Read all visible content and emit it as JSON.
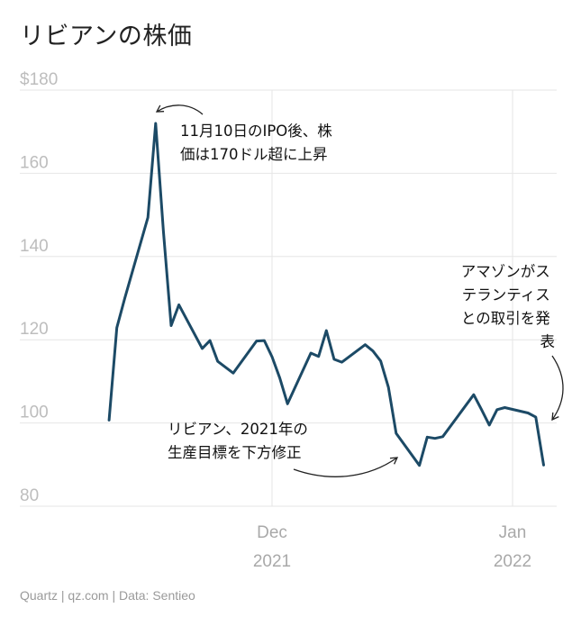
{
  "title": "リビアンの株価",
  "source": "Quartz | qz.com | Data: Sentieo",
  "colors": {
    "line": "#1c4a66",
    "grid": "#e6e6e6",
    "tick": "#bdbdbd",
    "arrow": "#222222"
  },
  "chart_data": {
    "type": "line",
    "title": "リビアンの株価",
    "xlabel": "",
    "ylabel": "",
    "ylim": [
      80,
      180
    ],
    "y_ticks": [
      80,
      100,
      120,
      140,
      160,
      180
    ],
    "y_tick_labels": [
      "80",
      "100",
      "120",
      "140",
      "160",
      "$180"
    ],
    "x_ticks": [
      {
        "date": "2021-12-01",
        "label": "Dec",
        "sublabel": "2021"
      },
      {
        "date": "2022-01-01",
        "label": "Jan",
        "sublabel": "2022"
      }
    ],
    "grid": true,
    "series": [
      {
        "values": [
          {
            "date": "2021-11-10",
            "y": 100.7
          },
          {
            "date": "2021-11-11",
            "y": 122.9
          },
          {
            "date": "2021-11-12",
            "y": 129.9
          },
          {
            "date": "2021-11-15",
            "y": 149.4
          },
          {
            "date": "2021-11-16",
            "y": 172.0
          },
          {
            "date": "2021-11-17",
            "y": 146.1
          },
          {
            "date": "2021-11-18",
            "y": 123.4
          },
          {
            "date": "2021-11-19",
            "y": 128.4
          },
          {
            "date": "2021-11-22",
            "y": 117.9
          },
          {
            "date": "2021-11-23",
            "y": 119.8
          },
          {
            "date": "2021-11-24",
            "y": 114.8
          },
          {
            "date": "2021-11-26",
            "y": 112.0
          },
          {
            "date": "2021-11-29",
            "y": 119.7
          },
          {
            "date": "2021-11-30",
            "y": 119.8
          },
          {
            "date": "2021-12-01",
            "y": 115.9
          },
          {
            "date": "2021-12-02",
            "y": 110.8
          },
          {
            "date": "2021-12-03",
            "y": 104.6
          },
          {
            "date": "2021-12-06",
            "y": 116.8
          },
          {
            "date": "2021-12-07",
            "y": 116.0
          },
          {
            "date": "2021-12-08",
            "y": 122.2
          },
          {
            "date": "2021-12-09",
            "y": 115.3
          },
          {
            "date": "2021-12-10",
            "y": 114.6
          },
          {
            "date": "2021-12-13",
            "y": 118.8
          },
          {
            "date": "2021-12-14",
            "y": 117.3
          },
          {
            "date": "2021-12-15",
            "y": 114.9
          },
          {
            "date": "2021-12-16",
            "y": 108.6
          },
          {
            "date": "2021-12-17",
            "y": 97.5
          },
          {
            "date": "2021-12-20",
            "y": 89.8
          },
          {
            "date": "2021-12-21",
            "y": 96.6
          },
          {
            "date": "2021-12-22",
            "y": 96.3
          },
          {
            "date": "2021-12-23",
            "y": 96.7
          },
          {
            "date": "2021-12-27",
            "y": 106.8
          },
          {
            "date": "2021-12-28",
            "y": 103.2
          },
          {
            "date": "2021-12-29",
            "y": 99.5
          },
          {
            "date": "2021-12-30",
            "y": 103.2
          },
          {
            "date": "2021-12-31",
            "y": 103.7
          },
          {
            "date": "2022-01-03",
            "y": 102.4
          },
          {
            "date": "2022-01-04",
            "y": 101.4
          },
          {
            "date": "2022-01-05",
            "y": 89.9
          }
        ]
      }
    ],
    "annotations": [
      {
        "lines": [
          "11月10日のIPO後、株",
          "価は170ドル超に上昇"
        ]
      },
      {
        "lines": [
          "アマゾンがス",
          "テランティス",
          "との取引を発",
          "表"
        ]
      },
      {
        "lines": [
          "リビアン、2021年の",
          "生産目標を下方修正"
        ]
      }
    ]
  }
}
